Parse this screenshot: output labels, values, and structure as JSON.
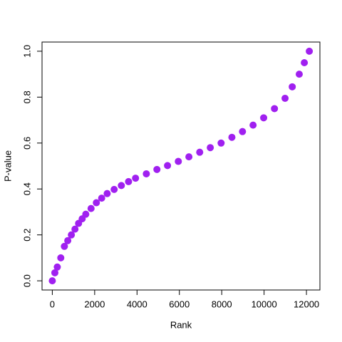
{
  "chart_data": {
    "type": "scatter",
    "xlabel": "Rank",
    "ylabel": "P-value",
    "color": "#a020f0",
    "x": [
      0,
      120,
      235,
      400,
      570,
      730,
      900,
      1070,
      1240,
      1410,
      1580,
      1830,
      2080,
      2330,
      2590,
      2920,
      3260,
      3600,
      3930,
      4440,
      4940,
      5440,
      5950,
      6450,
      6960,
      7460,
      7970,
      8480,
      8980,
      9480,
      9980,
      10490,
      10990,
      11330,
      11660,
      11900,
      12135
    ],
    "y": [
      0.0,
      0.035,
      0.06,
      0.1,
      0.15,
      0.175,
      0.2,
      0.225,
      0.25,
      0.27,
      0.29,
      0.315,
      0.34,
      0.36,
      0.38,
      0.398,
      0.415,
      0.432,
      0.447,
      0.466,
      0.485,
      0.502,
      0.52,
      0.54,
      0.56,
      0.58,
      0.6,
      0.625,
      0.65,
      0.678,
      0.71,
      0.75,
      0.795,
      0.845,
      0.9,
      0.95,
      1.0
    ],
    "xlim": [
      -485,
      12636
    ],
    "ylim": [
      -0.04,
      1.04
    ],
    "xticks": [
      0,
      2000,
      4000,
      6000,
      8000,
      10000,
      12000
    ],
    "yticks": [
      {
        "value": 0,
        "label": "0.0"
      },
      0.2,
      0.4,
      0.6,
      0.8,
      {
        "value": 1,
        "label": "1.0"
      }
    ]
  }
}
